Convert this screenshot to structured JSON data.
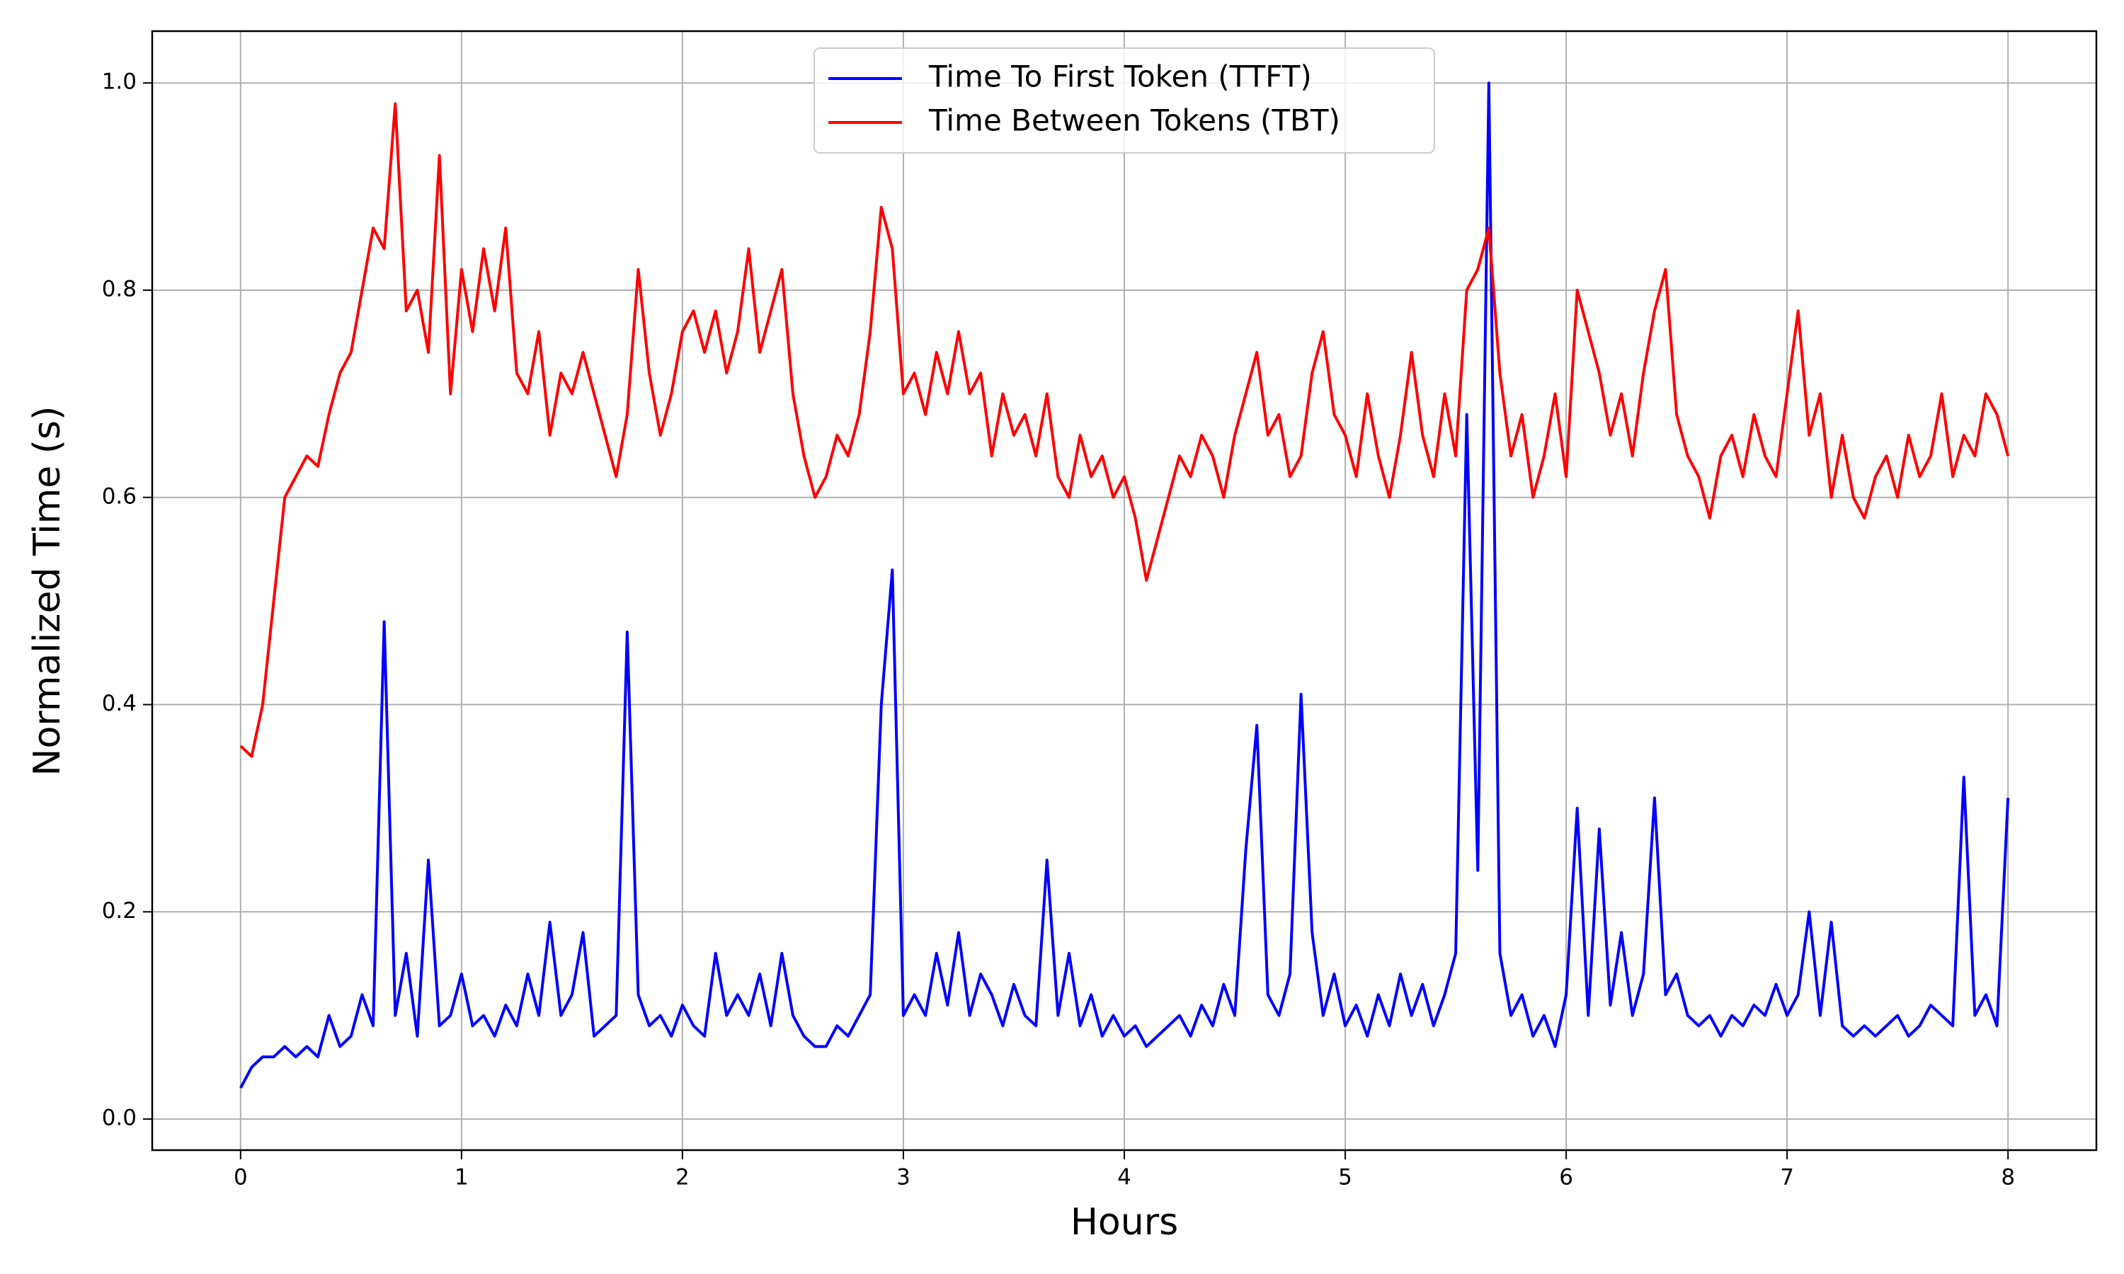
{
  "chart_data": {
    "type": "line",
    "xlabel": "Hours",
    "ylabel": "Normalized Time (s)",
    "xlim": [
      -0.4,
      8.4
    ],
    "ylim": [
      -0.03,
      1.05
    ],
    "xticks": [
      0,
      1,
      2,
      3,
      4,
      5,
      6,
      7,
      8
    ],
    "yticks": [
      {
        "value": 0,
        "label": "0.0"
      },
      0.2,
      0.4,
      0.6,
      0.8,
      {
        "value": 1,
        "label": "1.0"
      }
    ],
    "grid": true,
    "legend": "upper center",
    "x": [
      0,
      0.05,
      0.1,
      0.15,
      0.2,
      0.25,
      0.3,
      0.35,
      0.4,
      0.45,
      0.5,
      0.55,
      0.6,
      0.65,
      0.7,
      0.75,
      0.8,
      0.85,
      0.9,
      0.95,
      1,
      1.05,
      1.1,
      1.15,
      1.2,
      1.25,
      1.3,
      1.35,
      1.4,
      1.45,
      1.5,
      1.55,
      1.6,
      1.65,
      1.7,
      1.75,
      1.8,
      1.85,
      1.9,
      1.95,
      2,
      2.05,
      2.1,
      2.15,
      2.2,
      2.25,
      2.3,
      2.35,
      2.4,
      2.45,
      2.5,
      2.55,
      2.6,
      2.65,
      2.7,
      2.75,
      2.8,
      2.85,
      2.9,
      2.95,
      3,
      3.05,
      3.1,
      3.15,
      3.2,
      3.25,
      3.3,
      3.35,
      3.4,
      3.45,
      3.5,
      3.55,
      3.6,
      3.65,
      3.7,
      3.75,
      3.8,
      3.85,
      3.9,
      3.95,
      4,
      4.05,
      4.1,
      4.15,
      4.2,
      4.25,
      4.3,
      4.35,
      4.4,
      4.45,
      4.5,
      4.55,
      4.6,
      4.65,
      4.7,
      4.75,
      4.8,
      4.85,
      4.9,
      4.95,
      5,
      5.05,
      5.1,
      5.15,
      5.2,
      5.25,
      5.3,
      5.35,
      5.4,
      5.45,
      5.5,
      5.55,
      5.6,
      5.65,
      5.7,
      5.75,
      5.8,
      5.85,
      5.9,
      5.95,
      6,
      6.05,
      6.1,
      6.15,
      6.2,
      6.25,
      6.3,
      6.35,
      6.4,
      6.45,
      6.5,
      6.55,
      6.6,
      6.65,
      6.7,
      6.75,
      6.8,
      6.85,
      6.9,
      6.95,
      7,
      7.05,
      7.1,
      7.15,
      7.2,
      7.25,
      7.3,
      7.35,
      7.4,
      7.45,
      7.5,
      7.55,
      7.6,
      7.65,
      7.7,
      7.75,
      7.8,
      7.85,
      7.9,
      7.95,
      8
    ],
    "series": [
      {
        "name": "Time To First Token (TTFT)",
        "color": "#0000ff",
        "values": [
          0.03,
          0.05,
          0.06,
          0.06,
          0.07,
          0.06,
          0.07,
          0.06,
          0.1,
          0.07,
          0.08,
          0.12,
          0.09,
          0.48,
          0.1,
          0.16,
          0.08,
          0.25,
          0.09,
          0.1,
          0.14,
          0.09,
          0.1,
          0.08,
          0.11,
          0.09,
          0.14,
          0.1,
          0.19,
          0.1,
          0.12,
          0.18,
          0.08,
          0.09,
          0.1,
          0.47,
          0.12,
          0.09,
          0.1,
          0.08,
          0.11,
          0.09,
          0.08,
          0.16,
          0.1,
          0.12,
          0.1,
          0.14,
          0.09,
          0.16,
          0.1,
          0.08,
          0.07,
          0.07,
          0.09,
          0.08,
          0.1,
          0.12,
          0.4,
          0.53,
          0.1,
          0.12,
          0.1,
          0.16,
          0.11,
          0.18,
          0.1,
          0.14,
          0.12,
          0.09,
          0.13,
          0.1,
          0.09,
          0.25,
          0.1,
          0.16,
          0.09,
          0.12,
          0.08,
          0.1,
          0.08,
          0.09,
          0.07,
          0.08,
          0.09,
          0.1,
          0.08,
          0.11,
          0.09,
          0.13,
          0.1,
          0.26,
          0.38,
          0.12,
          0.1,
          0.14,
          0.41,
          0.18,
          0.1,
          0.14,
          0.09,
          0.11,
          0.08,
          0.12,
          0.09,
          0.14,
          0.1,
          0.13,
          0.09,
          0.12,
          0.16,
          0.68,
          0.24,
          1.0,
          0.16,
          0.1,
          0.12,
          0.08,
          0.1,
          0.07,
          0.12,
          0.3,
          0.1,
          0.28,
          0.11,
          0.18,
          0.1,
          0.14,
          0.31,
          0.12,
          0.14,
          0.1,
          0.09,
          0.1,
          0.08,
          0.1,
          0.09,
          0.11,
          0.1,
          0.13,
          0.1,
          0.12,
          0.2,
          0.1,
          0.19,
          0.09,
          0.08,
          0.09,
          0.08,
          0.09,
          0.1,
          0.08,
          0.09,
          0.11,
          0.1,
          0.09,
          0.33,
          0.1,
          0.12,
          0.09,
          0.31
        ]
      },
      {
        "name": "Time Between Tokens (TBT)",
        "color": "#ff0000",
        "values": [
          0.36,
          0.35,
          0.4,
          0.5,
          0.6,
          0.62,
          0.64,
          0.63,
          0.68,
          0.72,
          0.74,
          0.8,
          0.86,
          0.84,
          0.98,
          0.78,
          0.8,
          0.74,
          0.93,
          0.7,
          0.82,
          0.76,
          0.84,
          0.78,
          0.86,
          0.72,
          0.7,
          0.76,
          0.66,
          0.72,
          0.7,
          0.74,
          0.7,
          0.66,
          0.62,
          0.68,
          0.82,
          0.72,
          0.66,
          0.7,
          0.76,
          0.78,
          0.74,
          0.78,
          0.72,
          0.76,
          0.84,
          0.74,
          0.78,
          0.82,
          0.7,
          0.64,
          0.6,
          0.62,
          0.66,
          0.64,
          0.68,
          0.76,
          0.88,
          0.84,
          0.7,
          0.72,
          0.68,
          0.74,
          0.7,
          0.76,
          0.7,
          0.72,
          0.64,
          0.7,
          0.66,
          0.68,
          0.64,
          0.7,
          0.62,
          0.6,
          0.66,
          0.62,
          0.64,
          0.6,
          0.62,
          0.58,
          0.52,
          0.56,
          0.6,
          0.64,
          0.62,
          0.66,
          0.64,
          0.6,
          0.66,
          0.7,
          0.74,
          0.66,
          0.68,
          0.62,
          0.64,
          0.72,
          0.76,
          0.68,
          0.66,
          0.62,
          0.7,
          0.64,
          0.6,
          0.66,
          0.74,
          0.66,
          0.62,
          0.7,
          0.64,
          0.8,
          0.82,
          0.86,
          0.72,
          0.64,
          0.68,
          0.6,
          0.64,
          0.7,
          0.62,
          0.8,
          0.76,
          0.72,
          0.66,
          0.7,
          0.64,
          0.72,
          0.78,
          0.82,
          0.68,
          0.64,
          0.62,
          0.58,
          0.64,
          0.66,
          0.62,
          0.68,
          0.64,
          0.62,
          0.7,
          0.78,
          0.66,
          0.7,
          0.6,
          0.66,
          0.6,
          0.58,
          0.62,
          0.64,
          0.6,
          0.66,
          0.62,
          0.64,
          0.7,
          0.62,
          0.66,
          0.64,
          0.7,
          0.68,
          0.64
        ]
      }
    ]
  }
}
